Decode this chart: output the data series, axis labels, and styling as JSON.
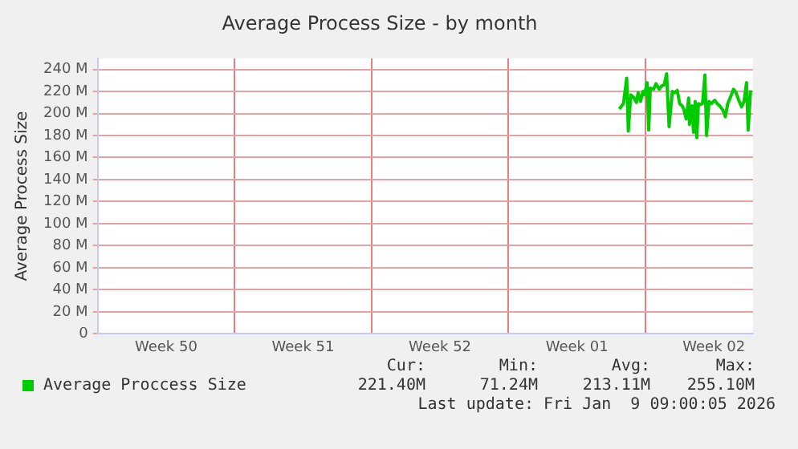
{
  "chart_data": {
    "type": "line",
    "title": "Average Process Size - by month",
    "ylabel": "Average Process Size",
    "x": [
      "2026-01-02T16:00",
      "2026-01-02T21:00",
      "2026-01-03T01:00",
      "2026-01-03T03:00",
      "2026-01-03T06:00",
      "2026-01-03T10:00",
      "2026-01-03T13:00",
      "2026-01-03T15:00",
      "2026-01-03T18:00",
      "2026-01-03T21:00",
      "2026-01-03T23:00",
      "2026-01-04T02:00",
      "2026-01-04T04:00",
      "2026-01-04T06:00",
      "2026-01-04T10:00",
      "2026-01-04T13:00",
      "2026-01-04T17:00",
      "2026-01-04T20:00",
      "2026-01-04T23:00",
      "2026-01-05T02:00",
      "2026-01-05T05:00",
      "2026-01-05T09:00",
      "2026-01-05T12:00",
      "2026-01-05T15:00",
      "2026-01-05T18:00",
      "2026-01-05T21:00",
      "2026-01-05T23:00",
      "2026-01-06T02:00",
      "2026-01-06T05:00",
      "2026-01-06T06:00",
      "2026-01-06T09:00",
      "2026-01-06T11:00",
      "2026-01-06T13:00",
      "2026-01-06T15:00",
      "2026-01-06T17:00",
      "2026-01-06T19:00",
      "2026-01-06T22:00",
      "2026-01-07T01:00",
      "2026-01-07T03:00",
      "2026-01-07T06:00",
      "2026-01-07T09:00",
      "2026-01-07T13:00",
      "2026-01-07T16:00",
      "2026-01-07T19:00",
      "2026-01-07T23:00",
      "2026-01-08T02:00",
      "2026-01-08T05:00",
      "2026-01-08T09:00",
      "2026-01-08T12:00",
      "2026-01-08T15:00",
      "2026-01-08T19:00",
      "2026-01-08T22:00",
      "2026-01-09T01:00",
      "2026-01-09T04:00",
      "2026-01-09T06:00",
      "2026-01-09T09:00"
    ],
    "series": [
      {
        "name": "Average Proccess Size",
        "color": "#00cc00",
        "values": [
          204,
          209,
          232,
          184,
          217,
          214,
          210,
          219,
          211,
          220,
          217,
          228,
          185,
          223,
          222,
          227,
          222,
          225,
          226,
          236,
          188,
          220,
          219,
          221,
          209,
          207,
          204,
          195,
          214,
          190,
          207,
          183,
          211,
          178,
          209,
          208,
          209,
          235,
          180,
          211,
          209,
          212,
          209,
          207,
          203,
          197,
          209,
          216,
          222,
          219,
          211,
          206,
          211,
          228,
          185,
          221
        ]
      }
    ],
    "xlim": [
      "2025-12-07T00:00",
      "2026-01-09T12:00"
    ],
    "xticks": [
      {
        "value": "2025-12-07",
        "label": null
      },
      {
        "value": "2025-12-10T12:00",
        "label": "Week 50"
      },
      {
        "value": "2025-12-14",
        "label": null
      },
      {
        "value": "2025-12-17T12:00",
        "label": "Week 51"
      },
      {
        "value": "2025-12-21",
        "label": null
      },
      {
        "value": "2025-12-24T12:00",
        "label": "Week 52"
      },
      {
        "value": "2025-12-28",
        "label": null
      },
      {
        "value": "2025-12-31T12:00",
        "label": "Week 01"
      },
      {
        "value": "2026-01-04",
        "label": null
      },
      {
        "value": "2026-01-07T12:00",
        "label": "Week 02"
      }
    ],
    "ylim": [
      0,
      250
    ],
    "yticks": [
      {
        "value": 0,
        "label": "0"
      },
      {
        "value": 20,
        "label": "20 M"
      },
      {
        "value": 40,
        "label": "40 M"
      },
      {
        "value": 60,
        "label": "60 M"
      },
      {
        "value": 80,
        "label": "80 M"
      },
      {
        "value": 100,
        "label": "100 M"
      },
      {
        "value": 120,
        "label": "120 M"
      },
      {
        "value": 140,
        "label": "140 M"
      },
      {
        "value": 160,
        "label": "160 M"
      },
      {
        "value": 180,
        "label": "180 M"
      },
      {
        "value": 200,
        "label": "200 M"
      },
      {
        "value": 220,
        "label": "220 M"
      },
      {
        "value": 240,
        "label": "240 M"
      }
    ],
    "grid": true,
    "legend": "bottom left",
    "marker": "none",
    "line_style": "solid",
    "annotations": [
      "Cur:",
      "Min:",
      "Avg:",
      "Max:",
      "221.40M",
      "71.24M",
      "213.11M",
      "255.10M",
      "Last update: Fri Jan  9 09:00:05 2026"
    ]
  }
}
